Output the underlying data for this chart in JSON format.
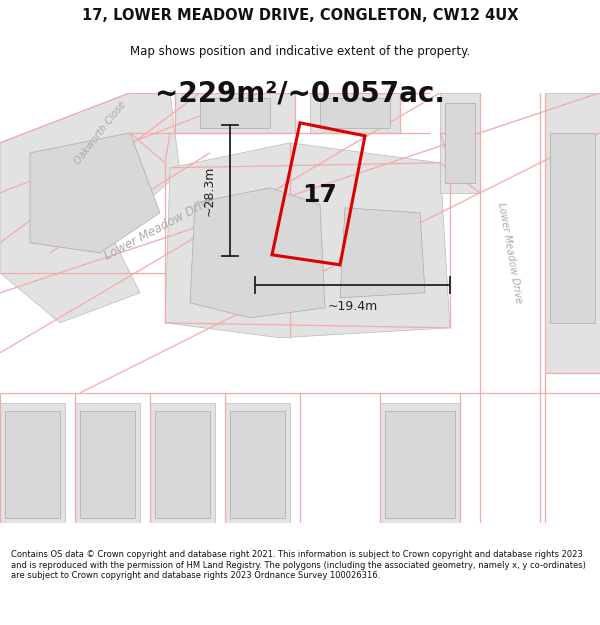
{
  "title": "17, LOWER MEADOW DRIVE, CONGLETON, CW12 4UX",
  "subtitle": "Map shows position and indicative extent of the property.",
  "area_text": "~229m²/~0.057ac.",
  "dim_vertical": "~28.3m",
  "dim_horizontal": "~19.4m",
  "number_label": "17",
  "footer": "Contains OS data © Crown copyright and database right 2021. This information is subject to Crown copyright and database rights 2023 and is reproduced with the permission of HM Land Registry. The polygons (including the associated geometry, namely x, y co-ordinates) are subject to Crown copyright and database rights 2023 Ordnance Survey 100026316.",
  "map_bg": "#f0f0f0",
  "road_fill": "#ffffff",
  "building_fill": "#d8d8d8",
  "plot_line_color": "#dd0000",
  "dim_line_color": "#222222",
  "road_label_color": "#aaaaaa",
  "cadastral_color": "#f5aaaa",
  "title_fontsize": 10.5,
  "subtitle_fontsize": 8.5,
  "area_fontsize": 20,
  "number_fontsize": 18,
  "dim_fontsize": 9,
  "footer_fontsize": 6.0
}
